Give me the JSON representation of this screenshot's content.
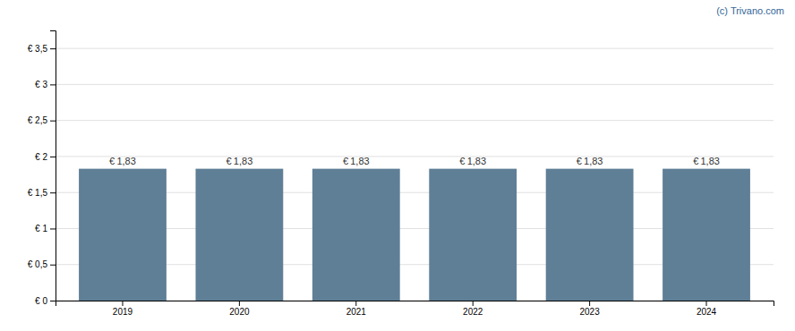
{
  "chart_data": {
    "type": "bar",
    "categories": [
      "2019",
      "2020",
      "2021",
      "2022",
      "2023",
      "2024"
    ],
    "values": [
      1.83,
      1.83,
      1.83,
      1.83,
      1.83,
      1.83
    ],
    "value_labels": [
      "€ 1,83",
      "€ 1,83",
      "€ 1,83",
      "€ 1,83",
      "€ 1,83",
      "€ 1,83"
    ],
    "color": "#5f7f96",
    "ylim": [
      0,
      3.75
    ],
    "yticks": [
      {
        "value": 0,
        "label": "€ 0"
      },
      {
        "value": 0.5,
        "label": "€ 0,5"
      },
      {
        "value": 1.0,
        "label": "€ 1"
      },
      {
        "value": 1.5,
        "label": "€ 1,5"
      },
      {
        "value": 2.0,
        "label": "€ 2"
      },
      {
        "value": 2.5,
        "label": "€ 2,5"
      },
      {
        "value": 3.0,
        "label": "€ 3"
      },
      {
        "value": 3.5,
        "label": "€ 3,5"
      }
    ],
    "grid": true,
    "data_labels": true,
    "annotations": [
      "(c) Trivano.com"
    ]
  }
}
